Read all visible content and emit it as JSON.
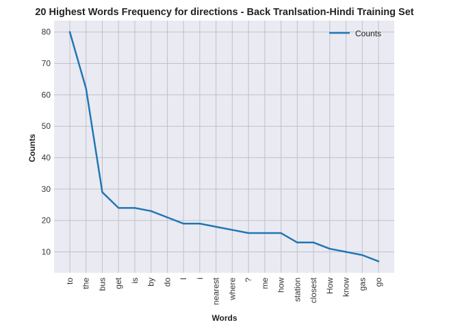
{
  "chart_data": {
    "type": "line",
    "title": "20 Highest Words Frequency for directions - Back Tranlsation-Hindi Training Set",
    "xlabel": "Words",
    "ylabel": "Counts",
    "categories": [
      "to",
      "the",
      "bus",
      "get",
      "is",
      "by",
      "do",
      "I",
      "i",
      "nearest",
      "where",
      "?",
      "me",
      "how",
      "station",
      "closest",
      "How",
      "know",
      "gas",
      "go"
    ],
    "series": [
      {
        "name": "Counts",
        "values": [
          80,
          62,
          29,
          24,
          24,
          23,
          21,
          19,
          19,
          18,
          17,
          16,
          16,
          16,
          13,
          13,
          11,
          10,
          9,
          7
        ],
        "color": "#1f77b4"
      }
    ],
    "yticks": [
      10,
      20,
      30,
      40,
      50,
      60,
      70,
      80
    ],
    "ylim": [
      3.35,
      83.65
    ],
    "grid": true,
    "legend": "top-right",
    "colors": {
      "background": "#eaeaf2",
      "grid": "#c0c0c8",
      "line": "#1f77b4"
    }
  }
}
